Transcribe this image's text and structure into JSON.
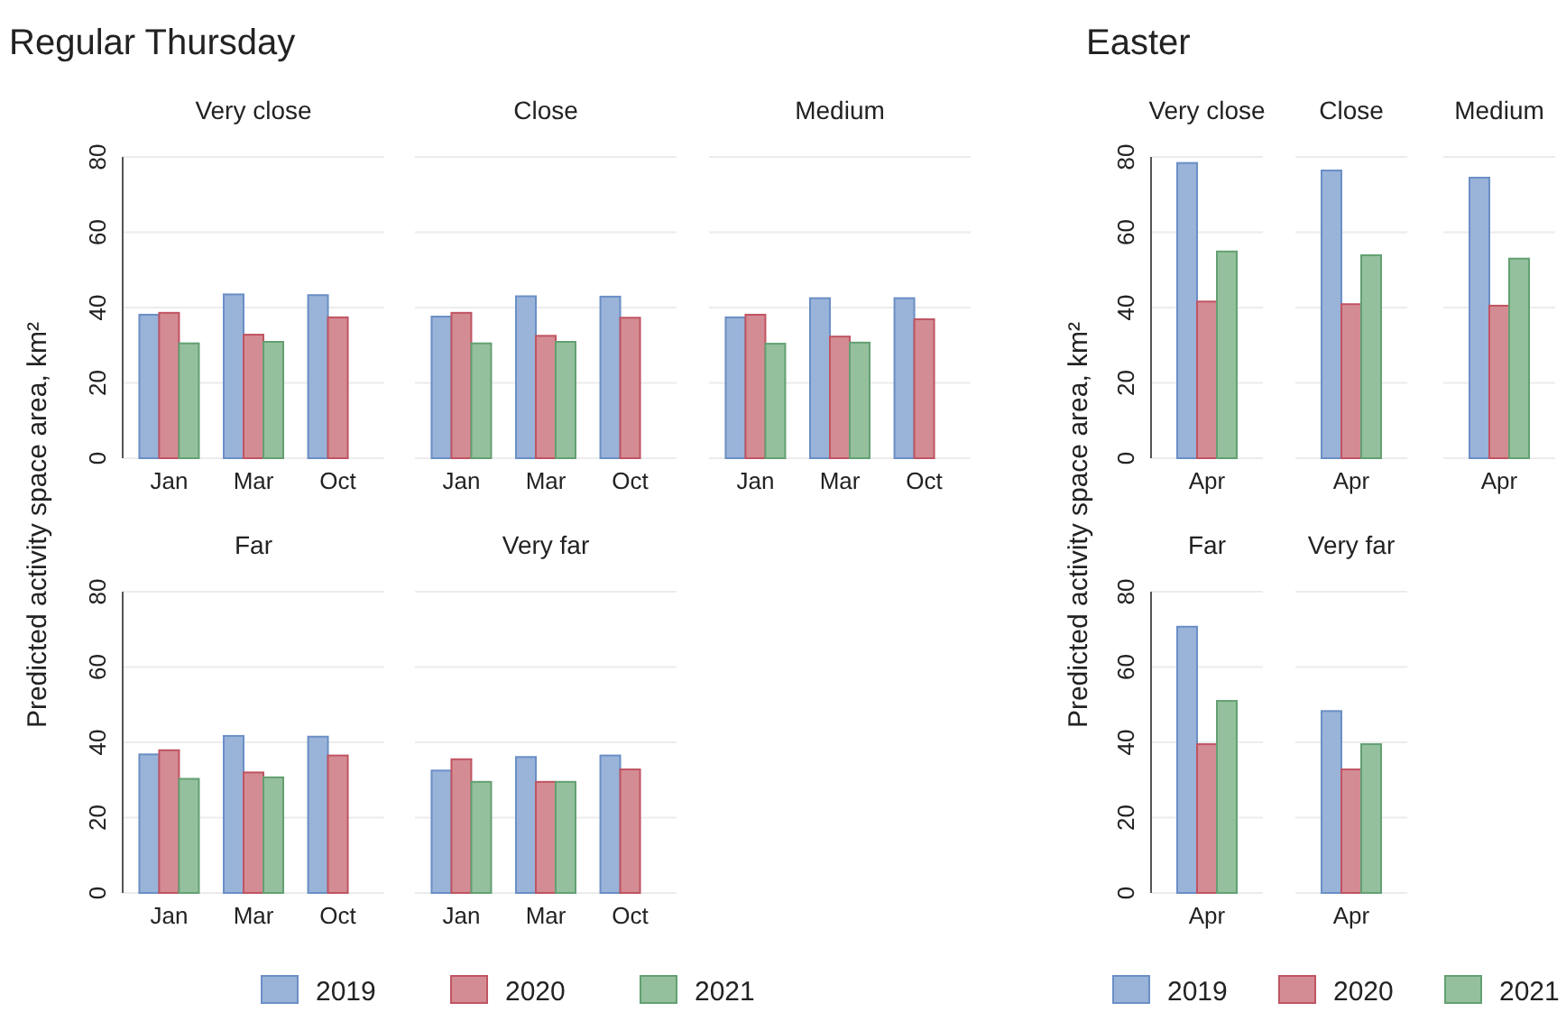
{
  "chart_data": [
    {
      "type": "bar",
      "title": "Very close",
      "annotations": [
        "Regular Thursday"
      ],
      "ylabel": "Predicted activity space area, km²",
      "legend": "bottom",
      "categories": [
        "Jan",
        "Mar",
        "Oct"
      ],
      "ylim": [
        0,
        80
      ],
      "yticks": [
        0,
        20,
        40,
        60,
        80
      ],
      "grid": "y",
      "series": [
        {
          "name": "2019",
          "color": "#9ab3d8",
          "values": [
            38.1,
            43.5,
            43.3
          ]
        },
        {
          "name": "2020",
          "color": "#d48c94",
          "values": [
            38.6,
            32.8,
            37.4
          ]
        },
        {
          "name": "2021",
          "color": "#95c09e",
          "values": [
            30.5,
            30.9,
            null
          ]
        }
      ]
    },
    {
      "type": "bar",
      "title": "Close",
      "categories": [
        "Jan",
        "Mar",
        "Oct"
      ],
      "ylim": [
        0,
        80
      ],
      "yticks": [
        0,
        20,
        40,
        60,
        80
      ],
      "grid": "y",
      "tick_labels": "x",
      "series": [
        {
          "color": "#9ab3d8",
          "values": [
            37.6,
            43.0,
            42.9
          ]
        },
        {
          "color": "#d48c94",
          "values": [
            38.6,
            32.5,
            37.3
          ]
        },
        {
          "color": "#95c09e",
          "values": [
            30.5,
            30.9,
            null
          ]
        }
      ]
    },
    {
      "type": "bar",
      "title": "Medium",
      "categories": [
        "Jan",
        "Mar",
        "Oct"
      ],
      "ylim": [
        0,
        80
      ],
      "yticks": [
        0,
        20,
        40,
        60,
        80
      ],
      "grid": "y",
      "tick_labels": "x",
      "series": [
        {
          "color": "#9ab3d8",
          "values": [
            37.4,
            42.5,
            42.5
          ]
        },
        {
          "color": "#d48c94",
          "values": [
            38.1,
            32.3,
            36.9
          ]
        },
        {
          "color": "#95c09e",
          "values": [
            30.4,
            30.7,
            null
          ]
        }
      ]
    },
    {
      "type": "bar",
      "title": "Far",
      "categories": [
        "Jan",
        "Mar",
        "Oct"
      ],
      "ylim": [
        0,
        80
      ],
      "yticks": [
        0,
        20,
        40,
        60,
        80
      ],
      "grid": "y",
      "series": [
        {
          "color": "#9ab3d8",
          "values": [
            36.8,
            41.7,
            41.5
          ]
        },
        {
          "color": "#d48c94",
          "values": [
            37.9,
            32.0,
            36.5
          ]
        },
        {
          "color": "#95c09e",
          "values": [
            30.3,
            30.7,
            null
          ]
        }
      ]
    },
    {
      "type": "bar",
      "title": "Very far",
      "categories": [
        "Jan",
        "Mar",
        "Oct"
      ],
      "ylim": [
        0,
        80
      ],
      "yticks": [
        0,
        20,
        40,
        60,
        80
      ],
      "grid": "y",
      "tick_labels": "x",
      "series": [
        {
          "color": "#9ab3d8",
          "values": [
            32.5,
            36.1,
            36.5
          ]
        },
        {
          "color": "#d48c94",
          "values": [
            35.5,
            29.5,
            32.8
          ]
        },
        {
          "color": "#95c09e",
          "values": [
            29.5,
            29.5,
            null
          ]
        }
      ]
    },
    {
      "type": "bar",
      "title": "Very close",
      "annotations": [
        "Easter"
      ],
      "ylabel": "Predicted activity space area, km²",
      "legend": "bottom",
      "categories": [
        "Apr"
      ],
      "ylim": [
        0,
        80
      ],
      "yticks": [
        0,
        20,
        40,
        60,
        80
      ],
      "grid": "y",
      "series": [
        {
          "name": "2019",
          "color": "#9ab3d8",
          "values": [
            78.4
          ]
        },
        {
          "name": "2020",
          "color": "#d48c94",
          "values": [
            41.6
          ]
        },
        {
          "name": "2021",
          "color": "#95c09e",
          "values": [
            54.9
          ]
        }
      ]
    },
    {
      "type": "bar",
      "title": "Close",
      "categories": [
        "Apr"
      ],
      "ylim": [
        0,
        80
      ],
      "yticks": [
        0,
        20,
        40,
        60,
        80
      ],
      "grid": "y",
      "tick_labels": "x",
      "series": [
        {
          "color": "#9ab3d8",
          "values": [
            76.4
          ]
        },
        {
          "color": "#d48c94",
          "values": [
            40.9
          ]
        },
        {
          "color": "#95c09e",
          "values": [
            53.9
          ]
        }
      ]
    },
    {
      "type": "bar",
      "title": "Medium",
      "categories": [
        "Apr"
      ],
      "ylim": [
        0,
        80
      ],
      "yticks": [
        0,
        20,
        40,
        60,
        80
      ],
      "grid": "y",
      "tick_labels": "x",
      "series": [
        {
          "color": "#9ab3d8",
          "values": [
            74.5
          ]
        },
        {
          "color": "#d48c94",
          "values": [
            40.5
          ]
        },
        {
          "color": "#95c09e",
          "values": [
            53.0
          ]
        }
      ]
    },
    {
      "type": "bar",
      "title": "Far",
      "categories": [
        "Apr"
      ],
      "ylim": [
        0,
        80
      ],
      "yticks": [
        0,
        20,
        40,
        60,
        80
      ],
      "grid": "y",
      "series": [
        {
          "color": "#9ab3d8",
          "values": [
            70.7
          ]
        },
        {
          "color": "#d48c94",
          "values": [
            39.5
          ]
        },
        {
          "color": "#95c09e",
          "values": [
            51.0
          ]
        }
      ]
    },
    {
      "type": "bar",
      "title": "Very far",
      "categories": [
        "Apr"
      ],
      "ylim": [
        0,
        80
      ],
      "yticks": [
        0,
        20,
        40,
        60,
        80
      ],
      "grid": "y",
      "tick_labels": "x",
      "series": [
        {
          "color": "#9ab3d8",
          "values": [
            48.3
          ]
        },
        {
          "color": "#d48c94",
          "values": [
            32.8
          ]
        },
        {
          "color": "#95c09e",
          "values": [
            39.5
          ]
        }
      ]
    }
  ]
}
